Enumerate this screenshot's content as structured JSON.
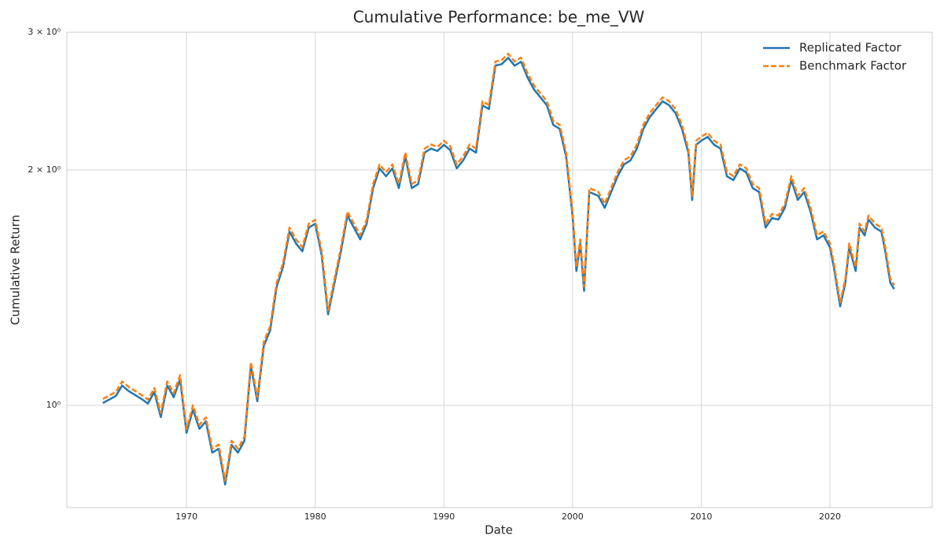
{
  "chart_data": {
    "type": "line",
    "title": "Cumulative Performance: be_me_VW",
    "x_label": "Date",
    "y_label": "Cumulative Return",
    "x": [
      1963.5,
      1964.5,
      1965,
      1965.5,
      1966.5,
      1967,
      1967.5,
      1968,
      1968.5,
      1969,
      1969.5,
      1970,
      1970.5,
      1971,
      1971.5,
      1972,
      1972.5,
      1973,
      1973.5,
      1974,
      1974.5,
      1975,
      1975.5,
      1976,
      1976.5,
      1977,
      1977.5,
      1978,
      1978.5,
      1979,
      1979.5,
      1980,
      1980.5,
      1981,
      1981.5,
      1982,
      1982.5,
      1983,
      1983.5,
      1984,
      1984.5,
      1985,
      1985.5,
      1986,
      1986.5,
      1987,
      1987.5,
      1988,
      1988.5,
      1989,
      1989.5,
      1990,
      1990.5,
      1991,
      1991.5,
      1992,
      1992.5,
      1993,
      1993.5,
      1994,
      1994.5,
      1995,
      1995.5,
      1996,
      1996.5,
      1997,
      1997.5,
      1998,
      1998.5,
      1999,
      1999.5,
      2000,
      2000.3,
      2000.6,
      2000.9,
      2001.3,
      2002,
      2002.5,
      2003,
      2003.5,
      2004,
      2004.5,
      2005,
      2005.5,
      2006,
      2006.5,
      2007,
      2007.5,
      2008,
      2008.5,
      2009,
      2009.3,
      2009.6,
      2010,
      2010.5,
      2011,
      2011.5,
      2012,
      2012.5,
      2013,
      2013.5,
      2014,
      2014.5,
      2015,
      2015.5,
      2016,
      2016.5,
      2017,
      2017.5,
      2018,
      2018.5,
      2019,
      2019.5,
      2020,
      2020.3,
      2020.8,
      2021.2,
      2021.5,
      2022,
      2022.3,
      2022.7,
      2023,
      2023.5,
      2024,
      2024.3,
      2024.7,
      2025
    ],
    "series": [
      {
        "name": "Replicated Factor",
        "color": "#1f77b4",
        "linestyle": "solid",
        "values": [
          1.007,
          1.028,
          1.06,
          1.043,
          1.019,
          1.005,
          1.04,
          0.966,
          1.06,
          1.024,
          1.08,
          0.922,
          0.988,
          0.933,
          0.954,
          0.87,
          0.88,
          0.792,
          0.89,
          0.87,
          0.901,
          1.123,
          1.012,
          1.191,
          1.247,
          1.417,
          1.503,
          1.668,
          1.611,
          1.574,
          1.688,
          1.707,
          1.556,
          1.307,
          1.434,
          1.574,
          1.748,
          1.688,
          1.63,
          1.707,
          1.896,
          2.009,
          1.963,
          2.009,
          1.896,
          2.081,
          1.896,
          1.918,
          2.105,
          2.13,
          2.115,
          2.154,
          2.12,
          2.009,
          2.057,
          2.13,
          2.105,
          2.42,
          2.392,
          2.719,
          2.732,
          2.783,
          2.719,
          2.751,
          2.626,
          2.535,
          2.477,
          2.42,
          2.284,
          2.257,
          2.081,
          1.748,
          1.485,
          1.611,
          1.401,
          1.874,
          1.853,
          1.789,
          1.874,
          1.963,
          2.033,
          2.057,
          2.13,
          2.257,
          2.337,
          2.392,
          2.448,
          2.42,
          2.364,
          2.257,
          2.105,
          1.831,
          2.154,
          2.18,
          2.205,
          2.154,
          2.13,
          1.963,
          1.941,
          2.009,
          1.986,
          1.896,
          1.874,
          1.688,
          1.736,
          1.728,
          1.789,
          1.941,
          1.831,
          1.874,
          1.768,
          1.63,
          1.649,
          1.592,
          1.503,
          1.338,
          1.434,
          1.592,
          1.485,
          1.688,
          1.649,
          1.728,
          1.688,
          1.668,
          1.574,
          1.434,
          1.408
        ]
      },
      {
        "name": "Benchmark Factor",
        "color": "#ff7f0e",
        "linestyle": "dashed",
        "values": [
          1.019,
          1.04,
          1.073,
          1.056,
          1.031,
          1.017,
          1.052,
          0.978,
          1.073,
          1.036,
          1.093,
          0.933,
          1.0,
          0.944,
          0.965,
          0.88,
          0.891,
          0.801,
          0.901,
          0.88,
          0.912,
          1.136,
          1.024,
          1.205,
          1.262,
          1.434,
          1.521,
          1.688,
          1.63,
          1.593,
          1.708,
          1.727,
          1.575,
          1.323,
          1.451,
          1.593,
          1.769,
          1.708,
          1.65,
          1.727,
          1.919,
          2.033,
          1.987,
          2.033,
          1.919,
          2.106,
          1.919,
          1.941,
          2.13,
          2.156,
          2.14,
          2.18,
          2.145,
          2.033,
          2.082,
          2.156,
          2.13,
          2.449,
          2.421,
          2.752,
          2.765,
          2.816,
          2.752,
          2.784,
          2.658,
          2.565,
          2.507,
          2.449,
          2.311,
          2.284,
          2.106,
          1.769,
          1.503,
          1.63,
          1.418,
          1.896,
          1.875,
          1.81,
          1.896,
          1.987,
          2.057,
          2.082,
          2.156,
          2.284,
          2.365,
          2.421,
          2.477,
          2.449,
          2.392,
          2.284,
          2.13,
          1.853,
          2.18,
          2.206,
          2.231,
          2.18,
          2.156,
          1.987,
          1.964,
          2.033,
          2.01,
          1.919,
          1.896,
          1.708,
          1.757,
          1.749,
          1.81,
          1.964,
          1.853,
          1.896,
          1.789,
          1.65,
          1.669,
          1.611,
          1.521,
          1.354,
          1.451,
          1.611,
          1.503,
          1.708,
          1.669,
          1.749,
          1.708,
          1.688,
          1.593,
          1.451,
          1.425
        ]
      }
    ],
    "xlim": [
      1960.7,
      2027.95
    ],
    "xticks": [
      1970,
      1980,
      1990,
      2000,
      2010,
      2020
    ],
    "ylim": [
      0.74,
      3.0
    ],
    "log_y": true,
    "yticks": [
      {
        "value": 1,
        "label": "10⁰"
      },
      {
        "value": 2,
        "label": "2 × 10⁰"
      },
      {
        "value": 3,
        "label": "3 × 10⁰"
      }
    ],
    "grid": true,
    "legend": "upper right"
  }
}
